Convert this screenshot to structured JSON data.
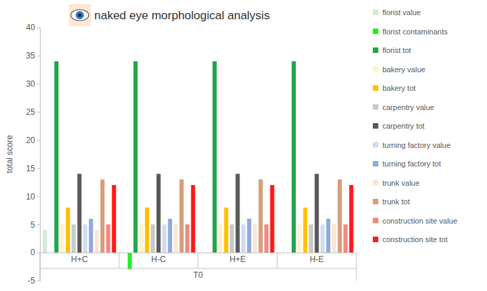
{
  "chart_data": {
    "type": "bar",
    "title": "naked eye morphological analysis",
    "ylabel": "total score",
    "xlabel": "T0",
    "categories": [
      "H+C",
      "H-C",
      "H+E",
      "H-E"
    ],
    "ylim": [
      -5,
      40
    ],
    "yticks": [
      -5,
      0,
      5,
      10,
      15,
      20,
      25,
      30,
      35,
      40
    ],
    "grid": false,
    "legend": "right",
    "series": [
      {
        "name": "florist value",
        "color": "#d5e8d4",
        "values": [
          4,
          0,
          0,
          0
        ]
      },
      {
        "name": "florist contaminants",
        "color": "#22ee22",
        "values": [
          0,
          -3,
          0,
          0
        ]
      },
      {
        "name": "florist tot",
        "color": "#21a74b",
        "values": [
          34,
          34,
          34,
          34
        ]
      },
      {
        "name": "bakery value",
        "color": "#fff2cc",
        "values": [
          5,
          5,
          5,
          5
        ]
      },
      {
        "name": "bakery tot",
        "color": "#ffc000",
        "values": [
          8,
          8,
          8,
          8
        ]
      },
      {
        "name": "carpentry value",
        "color": "#c9c9c9",
        "values": [
          5,
          5,
          5,
          5
        ]
      },
      {
        "name": "carpentry tot",
        "color": "#595959",
        "values": [
          14,
          14,
          14,
          14
        ]
      },
      {
        "name": "turning factory value",
        "color": "#cfdcf2",
        "values": [
          5,
          5,
          5,
          5
        ]
      },
      {
        "name": "turning factory tot",
        "color": "#8eaadb",
        "values": [
          6,
          6,
          6,
          6
        ]
      },
      {
        "name": "trunk value",
        "color": "#fbe5d6",
        "values": [
          4,
          5,
          5,
          5
        ]
      },
      {
        "name": "trunk tot",
        "color": "#d99e7a",
        "values": [
          13,
          13,
          13,
          13
        ]
      },
      {
        "name": "construction site value",
        "color": "#f4877f",
        "values": [
          5,
          5,
          5,
          5
        ]
      },
      {
        "name": "construction site tot",
        "color": "#ff1a1a",
        "values": [
          12,
          12,
          12,
          12
        ]
      }
    ]
  }
}
